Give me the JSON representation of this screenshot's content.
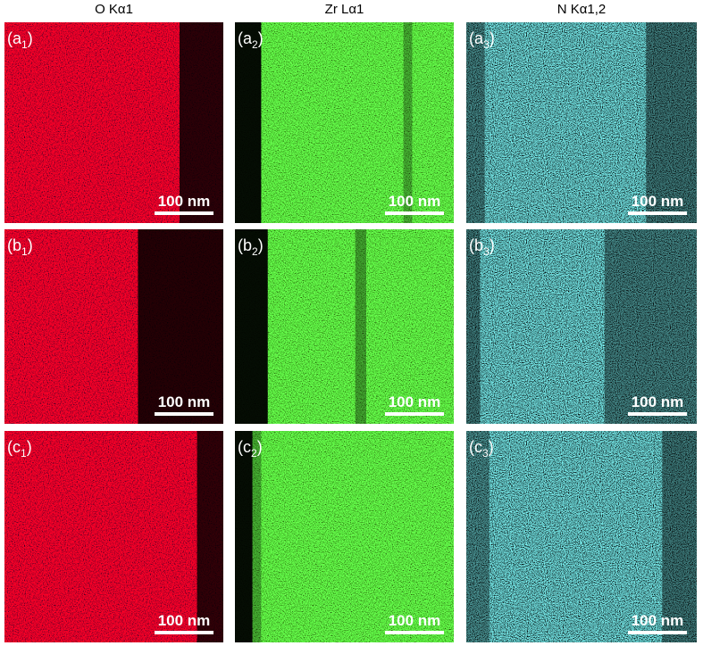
{
  "columns": [
    {
      "header": "O Kα1",
      "panels": [
        {
          "label": {
            "open": "(a",
            "sub": "1",
            "close": ")"
          },
          "scale": "100 nm"
        },
        {
          "label": {
            "open": "(b",
            "sub": "1",
            "close": ")"
          },
          "scale": "100 nm"
        },
        {
          "label": {
            "open": "(c",
            "sub": "1",
            "close": ")"
          },
          "scale": "100 nm"
        }
      ]
    },
    {
      "header": "Zr Lα1",
      "panels": [
        {
          "label": {
            "open": "(a",
            "sub": "2",
            "close": ")"
          },
          "scale": "100 nm"
        },
        {
          "label": {
            "open": "(b",
            "sub": "2",
            "close": ")"
          },
          "scale": "100 nm"
        },
        {
          "label": {
            "open": "(c",
            "sub": "2",
            "close": ")"
          },
          "scale": "100 nm"
        }
      ]
    },
    {
      "header": "N Kα1,2",
      "panels": [
        {
          "label": {
            "open": "(a",
            "sub": "3",
            "close": ")"
          },
          "scale": "100 nm"
        },
        {
          "label": {
            "open": "(b",
            "sub": "3",
            "close": ")"
          },
          "scale": "100 nm"
        },
        {
          "label": {
            "open": "(c",
            "sub": "3",
            "close": ")"
          },
          "scale": "100 nm"
        }
      ]
    }
  ]
}
